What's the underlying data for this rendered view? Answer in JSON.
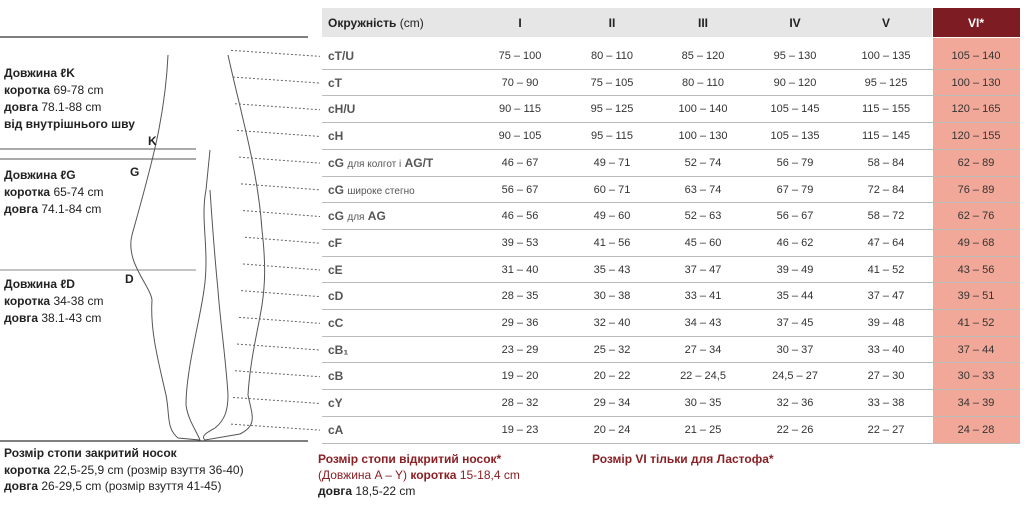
{
  "figure": {
    "letters": [
      "K",
      "G",
      "D"
    ]
  },
  "left_blocks": [
    {
      "title": "Довжина ℓK",
      "rows": [
        [
          "коротка",
          "69-78 cm"
        ],
        [
          "довга",
          "78.1-88 cm"
        ]
      ],
      "extra": "від внутрішнього шву"
    },
    {
      "title": "Довжина ℓG",
      "rows": [
        [
          "коротка",
          "65-74 cm"
        ],
        [
          "довга",
          "74.1-84 cm"
        ]
      ]
    },
    {
      "title": "Довжина ℓD",
      "rows": [
        [
          "коротка",
          "34-38 cm"
        ],
        [
          "довга",
          "38.1-43 cm"
        ]
      ]
    }
  ],
  "table": {
    "header": {
      "label": "Окружність",
      "unit": "(cm)",
      "columns": [
        "I",
        "II",
        "III",
        "IV",
        "V",
        "VI*"
      ]
    },
    "rows": [
      {
        "label": "cT/U",
        "cells": [
          "75 – 100",
          "80 – 110",
          "85 – 120",
          "95 – 130",
          "100 – 135",
          "105 – 140"
        ]
      },
      {
        "label": "cT",
        "cells": [
          "70 – 90",
          "75 – 105",
          "80 – 110",
          "90 – 120",
          "95 – 125",
          "100 – 130"
        ]
      },
      {
        "label": "cH/U",
        "cells": [
          "90 – 115",
          "95 – 125",
          "100 – 140",
          "105 – 145",
          "115 – 155",
          "120 – 165"
        ]
      },
      {
        "label": "cH",
        "cells": [
          "90 – 105",
          "95 – 115",
          "100 – 130",
          "105 – 135",
          "115 – 145",
          "120 – 155"
        ]
      },
      {
        "label": "cG",
        "note": "для колгот і",
        "label2": "AG/T",
        "cells": [
          "46 – 67",
          "49 – 71",
          "52 – 74",
          "56 – 79",
          "58 – 84",
          "62 – 89"
        ]
      },
      {
        "label": "cG",
        "note": "широке стегно",
        "cells": [
          "56 – 67",
          "60 – 71",
          "63 – 74",
          "67 – 79",
          "72 – 84",
          "76 – 89"
        ]
      },
      {
        "label": "cG",
        "note": "для",
        "label2": "AG",
        "cells": [
          "46 – 56",
          "49 – 60",
          "52 – 63",
          "56 – 67",
          "58 – 72",
          "62 – 76"
        ]
      },
      {
        "label": "cF",
        "cells": [
          "39 – 53",
          "41 – 56",
          "45 – 60",
          "46 – 62",
          "47 – 64",
          "49 – 68"
        ]
      },
      {
        "label": "cE",
        "cells": [
          "31 – 40",
          "35 – 43",
          "37 – 47",
          "39 – 49",
          "41 – 52",
          "43 – 56"
        ]
      },
      {
        "label": "cD",
        "cells": [
          "28 – 35",
          "30 – 38",
          "33 – 41",
          "35 – 44",
          "37 – 47",
          "39 – 51"
        ]
      },
      {
        "label": "cC",
        "cells": [
          "29 – 36",
          "32 – 40",
          "34 – 43",
          "37 – 45",
          "39 – 48",
          "41 – 52"
        ]
      },
      {
        "label": "cB₁",
        "cells": [
          "23 – 29",
          "25 – 32",
          "27 – 34",
          "30 – 37",
          "33 – 40",
          "37 – 44"
        ]
      },
      {
        "label": "cB",
        "cells": [
          "19 – 20",
          "20 – 22",
          "22 – 24,5",
          "24,5 – 27",
          "27 – 30",
          "30 – 33"
        ]
      },
      {
        "label": "cY",
        "cells": [
          "28 – 32",
          "29 – 34",
          "30 – 35",
          "32 – 36",
          "33 – 38",
          "34 – 39"
        ]
      },
      {
        "label": "cA",
        "cells": [
          "19 – 23",
          "20 – 24",
          "21 – 25",
          "22 – 26",
          "22 – 27",
          "24 – 28"
        ]
      }
    ]
  },
  "footer": {
    "closed": {
      "title": "Розмір стопи закритий носок",
      "rows": [
        [
          "коротка",
          "22,5-25,9 cm (розмір взуття 36-40)"
        ],
        [
          "довга",
          "26-29,5 cm (розмір взуття 41-45)"
        ]
      ]
    },
    "open": {
      "title": "Розмір стопи відкритий носок*",
      "prefix": "(Довжина A – Y)",
      "rows": [
        [
          "коротка",
          "15-18,4 cm"
        ],
        [
          "довга",
          "18,5-22 cm"
        ]
      ]
    },
    "note": "Розмір VI тільки для Ластофа*"
  }
}
